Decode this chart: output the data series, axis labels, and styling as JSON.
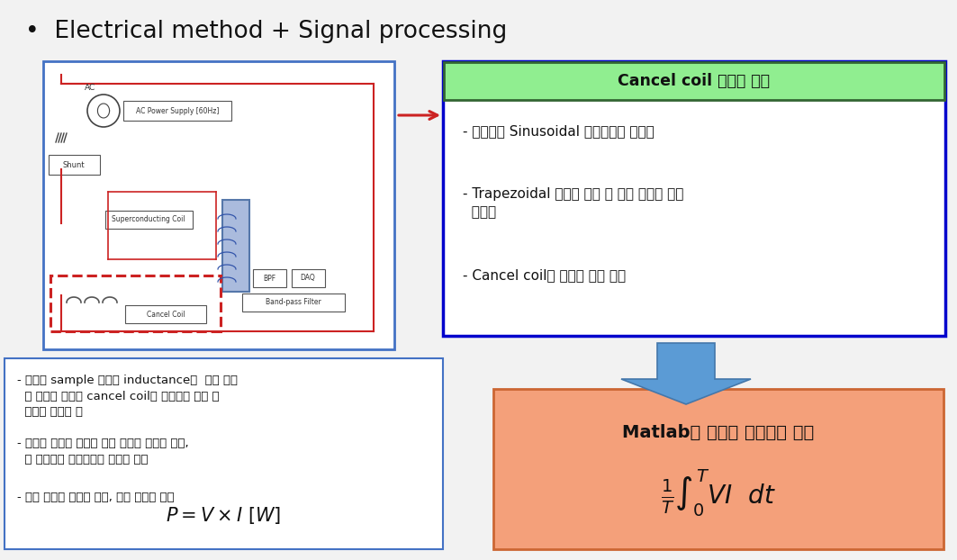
{
  "title": "Electrical method + Signal processing",
  "bg_color": "#f2f2f2",
  "white": "#ffffff",
  "cancel_coil_title": "Cancel coil 적용의 한계",
  "cancel_coil_bullets": [
    "- 일반적인 Sinusoidal 파형이라면 효과적",
    "- Trapezoidal 파형이 인가 될 경우 측정에 매우\n  어려움",
    "- Cancel coil의 영향을 보기 힘듦"
  ],
  "matlab_title": "Matlab을 이용한 유효전력 계산",
  "matlab_bg": "#F4A07A",
  "matlab_border": "#cc6633",
  "left_bullets": [
    "- 초전도 sample 자체의 inductance에  의한 전압\n  과 자장의 영향을 cancel coil로 상쇄시켜 저항 성\n  분만을 측정한 것",
    "- 샘플에 흐르는 전류와 시편 양단의 전압을 측정,\n  두 물리량을 곱함으로써 손실을 측정",
    "- 측정 방법이 비교적 간편, 측정 시간이 짧음"
  ],
  "arrow_color": "#5b9bd5",
  "circuit_border": "#4472c4",
  "red_color": "#cc2222",
  "green_title_bg": "#90ee90",
  "green_title_border": "#336633",
  "blue_box_border": "#0000cc"
}
